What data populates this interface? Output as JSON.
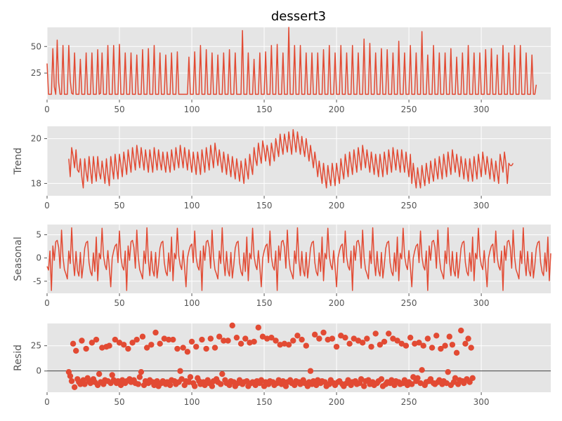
{
  "figure": {
    "title": "dessert3"
  },
  "chart_data": [
    {
      "panel": "observed",
      "type": "line",
      "title": "dessert3",
      "ylabel": "",
      "xlim": [
        0,
        348
      ],
      "ylim": [
        0,
        68
      ],
      "xticks": [
        0,
        50,
        100,
        150,
        200,
        250,
        300
      ],
      "yticks": [
        25,
        50
      ],
      "grid": true,
      "color": "#e24a33",
      "x_start": 0,
      "values": [
        34,
        5,
        5,
        5,
        48,
        12,
        5,
        56,
        16,
        5,
        5,
        51,
        5,
        5,
        5,
        51,
        18,
        6,
        5,
        44,
        5,
        5,
        5,
        38,
        5,
        5,
        5,
        44,
        5,
        5,
        5,
        44,
        5,
        5,
        5,
        47,
        5,
        6,
        44,
        5,
        5,
        5,
        51,
        5,
        5,
        5,
        51,
        5,
        5,
        5,
        52,
        5,
        5,
        5,
        44,
        5,
        5,
        5,
        44,
        5,
        5,
        5,
        42,
        5,
        5,
        5,
        47,
        5,
        5,
        5,
        48,
        5,
        5,
        5,
        51,
        5,
        5,
        5,
        44,
        5,
        5,
        5,
        42,
        5,
        5,
        5,
        44,
        5,
        5,
        5,
        45,
        5,
        5,
        5,
        5,
        5,
        5,
        5,
        40,
        5,
        5,
        5,
        45,
        5,
        5,
        5,
        51,
        5,
        5,
        5,
        47,
        5,
        5,
        5,
        44,
        5,
        5,
        5,
        42,
        5,
        5,
        5,
        44,
        5,
        5,
        5,
        47,
        5,
        5,
        5,
        44,
        5,
        5,
        5,
        5,
        65,
        5,
        5,
        5,
        44,
        5,
        5,
        5,
        38,
        5,
        5,
        5,
        44,
        5,
        5,
        5,
        45,
        5,
        5,
        5,
        51,
        5,
        5,
        5,
        52,
        5,
        5,
        5,
        44,
        5,
        5,
        5,
        68,
        5,
        5,
        5,
        51,
        5,
        5,
        5,
        51,
        5,
        5,
        5,
        44,
        5,
        5,
        5,
        44,
        5,
        5,
        5,
        44,
        5,
        5,
        5,
        47,
        5,
        5,
        5,
        51,
        5,
        5,
        5,
        44,
        5,
        5,
        5,
        51,
        5,
        5,
        5,
        44,
        5,
        5,
        5,
        51,
        5,
        5,
        5,
        44,
        5,
        5,
        5,
        57,
        5,
        5,
        5,
        53,
        5,
        5,
        5,
        44,
        5,
        5,
        5,
        48,
        5,
        5,
        5,
        47,
        5,
        5,
        5,
        44,
        5,
        5,
        5,
        55,
        5,
        5,
        5,
        44,
        5,
        5,
        5,
        51,
        5,
        5,
        5,
        44,
        5,
        5,
        5,
        64,
        5,
        5,
        5,
        42,
        5,
        5,
        5,
        51,
        5,
        5,
        5,
        44,
        5,
        5,
        5,
        44,
        5,
        5,
        5,
        48,
        5,
        5,
        5,
        40,
        5,
        5,
        5,
        44,
        5,
        5,
        5,
        51,
        5,
        5,
        5,
        44,
        5,
        5,
        5,
        44,
        5,
        5,
        5,
        47,
        5,
        5,
        5,
        48,
        5,
        5,
        5,
        42,
        5,
        5,
        5,
        51,
        5,
        5,
        5,
        44,
        5,
        5,
        5,
        51,
        5,
        5,
        5,
        51,
        5,
        5,
        5,
        44,
        5,
        5,
        5,
        42,
        5,
        5,
        14
      ]
    },
    {
      "panel": "trend",
      "type": "line",
      "ylabel": "Trend",
      "xlim": [
        0,
        348
      ],
      "ylim": [
        17.45,
        20.55
      ],
      "xticks": [
        0,
        50,
        100,
        150,
        200,
        250,
        300
      ],
      "yticks": [
        18,
        20
      ],
      "grid": true,
      "color": "#e24a33",
      "x_start": 15,
      "values": [
        19.1,
        18.3,
        19.6,
        19.2,
        18.7,
        19.5,
        18.6,
        18.5,
        19.1,
        18.3,
        17.8,
        19.1,
        18.5,
        18.1,
        19.2,
        18.6,
        18.0,
        19.2,
        18.6,
        18.1,
        19.2,
        18.5,
        18.2,
        19.0,
        18.5,
        18.0,
        19.1,
        18.4,
        17.9,
        19.2,
        18.7,
        18.2,
        19.3,
        18.7,
        18.2,
        19.3,
        18.8,
        18.3,
        19.4,
        18.9,
        18.4,
        19.5,
        19.0,
        18.5,
        19.6,
        19.1,
        18.6,
        19.7,
        19.2,
        18.7,
        19.6,
        19.1,
        18.6,
        19.5,
        19.0,
        18.5,
        19.5,
        19.0,
        18.5,
        19.6,
        19.1,
        18.6,
        19.5,
        19.0,
        18.6,
        19.4,
        18.9,
        18.5,
        19.4,
        18.9,
        18.5,
        19.5,
        19.0,
        18.6,
        19.6,
        19.1,
        18.7,
        19.7,
        19.2,
        18.7,
        19.6,
        19.1,
        18.6,
        19.5,
        19.0,
        18.5,
        19.4,
        18.9,
        18.4,
        19.4,
        18.9,
        18.4,
        19.5,
        19.0,
        18.5,
        19.6,
        19.1,
        18.6,
        19.7,
        19.2,
        18.7,
        19.8,
        19.3,
        18.8,
        19.5,
        19.0,
        18.5,
        19.4,
        18.9,
        18.4,
        19.3,
        18.8,
        18.3,
        19.2,
        18.7,
        18.2,
        19.1,
        18.6,
        18.1,
        19.0,
        18.5,
        18.0,
        19.1,
        18.6,
        18.2,
        19.3,
        18.8,
        18.4,
        19.6,
        19.1,
        18.8,
        19.8,
        19.3,
        18.9,
        19.9,
        19.5,
        19.0,
        19.7,
        19.3,
        18.8,
        19.8,
        19.4,
        19.0,
        20.0,
        19.6,
        19.2,
        20.2,
        19.7,
        19.3,
        20.2,
        19.8,
        19.4,
        20.3,
        19.8,
        19.3,
        20.4,
        19.9,
        19.4,
        20.3,
        19.8,
        19.3,
        20.1,
        19.6,
        19.2,
        20.0,
        19.5,
        19.0,
        19.7,
        19.2,
        18.7,
        19.4,
        18.9,
        18.3,
        19.0,
        18.5,
        18.0,
        18.9,
        18.3,
        17.8,
        18.8,
        18.3,
        17.9,
        18.9,
        18.4,
        17.9,
        18.9,
        18.4,
        18.0,
        19.1,
        18.6,
        18.2,
        19.3,
        18.8,
        18.3,
        19.4,
        18.9,
        18.4,
        19.5,
        19.0,
        18.5,
        19.6,
        19.1,
        18.6,
        19.7,
        19.2,
        18.7,
        19.5,
        19.0,
        18.5,
        19.4,
        18.9,
        18.4,
        19.3,
        18.8,
        18.3,
        19.3,
        18.8,
        18.3,
        19.4,
        18.9,
        18.4,
        19.5,
        19.0,
        18.5,
        19.6,
        19.1,
        18.6,
        19.5,
        19.0,
        18.5,
        19.5,
        19.0,
        18.5,
        19.4,
        18.8,
        18.3,
        19.3,
        18.0,
        18.9,
        18.3,
        17.8,
        18.7,
        18.2,
        17.8,
        18.8,
        18.3,
        17.9,
        18.9,
        18.4,
        18.0,
        19.0,
        18.5,
        18.1,
        19.1,
        18.6,
        18.2,
        19.2,
        18.7,
        18.2,
        19.3,
        18.8,
        18.3,
        19.4,
        18.9,
        18.4,
        19.5,
        19.0,
        18.5,
        19.3,
        18.8,
        18.3,
        19.2,
        18.7,
        18.2,
        19.1,
        18.6,
        18.1,
        19.1,
        18.6,
        18.1,
        19.2,
        18.7,
        18.2,
        19.3,
        18.8,
        18.3,
        19.4,
        18.9,
        18.4,
        19.2,
        18.7,
        18.2,
        19.1,
        18.6,
        18.1,
        19.0,
        18.5,
        18.0,
        19.3,
        18.9,
        18.5,
        19.4,
        18.9,
        18.0,
        18.9,
        18.8,
        18.8,
        18.9
      ]
    },
    {
      "panel": "seasonal",
      "type": "line",
      "ylabel": "Seasonal",
      "xlim": [
        0,
        348
      ],
      "ylim": [
        -7.6,
        7.2
      ],
      "xticks": [
        0,
        50,
        100,
        150,
        200,
        250,
        300
      ],
      "yticks": [
        -5,
        0,
        5
      ],
      "grid": true,
      "color": "#e24a33",
      "x_start": 0,
      "period": 52,
      "pattern": [
        -1.8,
        -2.6,
        1.5,
        -7.0,
        2.6,
        -0.5,
        3.5,
        3.8,
        2.3,
        -2.2,
        6.0,
        0.2,
        -2.5,
        -3.4,
        -4.5,
        1.5,
        -1.2,
        6.5,
        -0.5,
        -3.8,
        1.4,
        -2.7,
        -3.9,
        1.2,
        -4.3,
        -1.5,
        2.1,
        3.3,
        3.6,
        -1.0,
        -3.0,
        -3.8,
        1.1,
        -2.9,
        4.5,
        -4.9,
        1.0,
        -0.2,
        6.4,
        0.5,
        -1.5,
        -2.5,
        1.6,
        -2.0,
        -6.2,
        0.0,
        1.5,
        2.6,
        3.0,
        -1.0,
        5.8,
        0.2
      ]
    },
    {
      "panel": "resid",
      "type": "scatter",
      "ylabel": "Resid",
      "xlim": [
        0,
        348
      ],
      "ylim": [
        -21,
        47
      ],
      "xticks": [
        0,
        50,
        100,
        150,
        200,
        250,
        300
      ],
      "yticks": [
        0,
        25
      ],
      "grid": true,
      "zero_line": true,
      "color": "#e24a33",
      "x_start": 15,
      "values": [
        -1,
        -5,
        -10,
        27,
        -16,
        20,
        -8,
        -11,
        -13,
        30,
        -9,
        -13,
        22,
        -7,
        -10,
        -12,
        28,
        -8,
        -11,
        31,
        -14,
        -3,
        -11,
        23,
        -13,
        -9,
        24,
        -10,
        25,
        -12,
        -4,
        -9,
        31,
        -12,
        -10,
        28,
        -14,
        -9,
        26,
        -12,
        -10,
        22,
        -8,
        -11,
        28,
        -9,
        -12,
        31,
        -13,
        -6,
        -1,
        34,
        -14,
        -10,
        23,
        -12,
        -9,
        26,
        -11,
        -14,
        38,
        -10,
        -15,
        27,
        -12,
        -10,
        32,
        -13,
        -11,
        31,
        -14,
        -9,
        31,
        -10,
        -13,
        22,
        -11,
        0,
        -8,
        23,
        -14,
        -10,
        19,
        -11,
        -6,
        29,
        -12,
        -15,
        24,
        -7,
        -10,
        -13,
        31,
        -11,
        -14,
        22,
        -9,
        -12,
        32,
        -15,
        -10,
        23,
        -8,
        -11,
        34,
        -13,
        -3,
        30,
        -9,
        -12,
        30,
        -14,
        -10,
        45,
        -11,
        -15,
        33,
        -12,
        -9,
        27,
        -13,
        -11,
        32,
        -10,
        -15,
        28,
        -12,
        -11,
        29,
        -14,
        -10,
        43,
        -12,
        -9,
        34,
        -15,
        -11,
        32,
        -13,
        -10,
        33,
        -11,
        -14,
        30,
        -12,
        -9,
        26,
        -13,
        -10,
        27,
        -15,
        -11,
        26,
        -9,
        -12,
        30,
        -14,
        -10,
        35,
        -11,
        -13,
        31,
        -9,
        -12,
        25,
        -15,
        -11,
        0,
        -13,
        -10,
        36,
        -14,
        -9,
        32,
        -12,
        -10,
        38,
        -11,
        -15,
        31,
        -13,
        -9,
        32,
        -12,
        -14,
        24,
        -11,
        -10,
        35,
        -13,
        -15,
        33,
        -12,
        -9,
        27,
        -14,
        -11,
        32,
        -10,
        -13,
        30,
        -12,
        -8,
        28,
        -15,
        -10,
        32,
        -9,
        -13,
        24,
        -11,
        -14,
        37,
        -12,
        -10,
        26,
        -8,
        -15,
        29,
        -13,
        -11,
        37,
        -12,
        -9,
        32,
        -14,
        -10,
        30,
        -11,
        -13,
        27,
        -12,
        -9,
        25,
        -14,
        -11,
        33,
        -13,
        -6,
        27,
        -10,
        -7,
        28,
        -12,
        1,
        25,
        -14,
        -11,
        32,
        -10,
        -8,
        23,
        -12,
        -13,
        35,
        -11,
        -9,
        22,
        -13,
        -10,
        25,
        -12,
        -1,
        34,
        -14,
        26,
        -11,
        -7,
        18,
        -13,
        -9,
        40,
        -10,
        -12,
        27,
        -8,
        32,
        -11,
        23,
        -7
      ]
    }
  ]
}
